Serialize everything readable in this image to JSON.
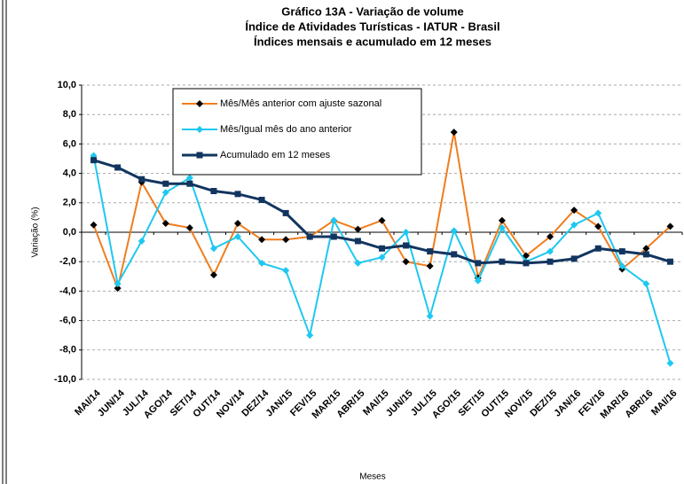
{
  "chart_data": {
    "type": "line",
    "title": [
      "Gráfico 13A - Variação de volume",
      "Índice de Atividades Turísticas - IATUR - Brasil",
      "Índices mensais e acumulado em 12 meses"
    ],
    "x_label": "Meses",
    "y_label": "Variação (%)",
    "categories": [
      "MAI/14",
      "JUN/14",
      "JUL/14",
      "AGO/14",
      "SET/14",
      "OUT/14",
      "NOV/14",
      "DEZ/14",
      "JAN/15",
      "FEV/15",
      "MAR/15",
      "ABR/15",
      "MAI/15",
      "JUN/15",
      "JUL/15",
      "AGO/15",
      "SET/15",
      "OUT/15",
      "NOV/15",
      "DEZ/15",
      "JAN/16",
      "FEV/16",
      "MAR/16",
      "ABR/16",
      "MAI/16"
    ],
    "series": [
      {
        "name": "Mês/Mês anterior com ajuste sazonal",
        "color": "#f07d1e",
        "marker": "diamond",
        "marker_color": "#000000",
        "values": [
          0.5,
          -3.8,
          3.4,
          0.6,
          0.3,
          -2.9,
          0.6,
          -0.5,
          -0.5,
          -0.3,
          0.8,
          0.2,
          0.8,
          -2.0,
          -2.3,
          6.8,
          -3.1,
          0.8,
          -1.6,
          -0.3,
          1.5,
          0.4,
          -2.5,
          -1.1,
          0.4
        ]
      },
      {
        "name": "Mês/Igual mês do ano anterior",
        "color": "#1ec8f0",
        "marker": "diamond",
        "marker_color": "#1ec8f0",
        "values": [
          5.2,
          -3.5,
          -0.6,
          2.7,
          3.7,
          -1.1,
          -0.3,
          -2.1,
          -2.6,
          -7.0,
          0.8,
          -2.1,
          -1.7,
          0.0,
          -5.7,
          0.1,
          -3.3,
          0.3,
          -2.0,
          -1.3,
          0.5,
          1.3,
          -2.3,
          -3.5,
          -8.9
        ]
      },
      {
        "name": "Acumulado em 12 meses",
        "color": "#12355f",
        "marker": "square",
        "marker_color": "#12355f",
        "values": [
          4.9,
          4.4,
          3.6,
          3.3,
          3.3,
          2.8,
          2.6,
          2.2,
          1.3,
          -0.3,
          -0.3,
          -0.6,
          -1.1,
          -0.9,
          -1.3,
          -1.5,
          -2.1,
          -2.0,
          -2.1,
          -2.0,
          -1.8,
          -1.1,
          -1.3,
          -1.5,
          -2.0
        ]
      }
    ],
    "ylim": [
      -10,
      10
    ],
    "yticks": [
      {
        "value": 10,
        "label": "10,0"
      },
      {
        "value": 8,
        "label": "8,0"
      },
      {
        "value": 6,
        "label": "6,0"
      },
      {
        "value": 4,
        "label": "4,0"
      },
      {
        "value": 2,
        "label": "2,0"
      },
      {
        "value": 0,
        "label": "0,0"
      },
      {
        "value": -2,
        "label": "-2,0"
      },
      {
        "value": -4,
        "label": "-4,0"
      },
      {
        "value": -6,
        "label": "-6,0"
      },
      {
        "value": -8,
        "label": "-8,0"
      },
      {
        "value": -10,
        "label": "-10,0"
      }
    ],
    "grid": true
  }
}
